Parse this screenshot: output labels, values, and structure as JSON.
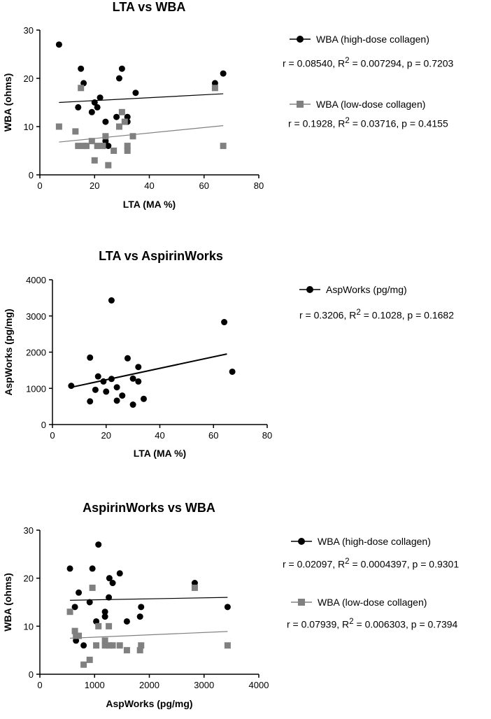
{
  "chart_data": [
    {
      "type": "scatter",
      "title": "LTA vs WBA",
      "xlabel": "LTA (MA %)",
      "ylabel": "WBA (ohms)",
      "xlim": [
        0,
        80
      ],
      "ylim": [
        0,
        30
      ],
      "xticks": [
        "0",
        "20",
        "40",
        "60",
        "80"
      ],
      "yticks": [
        "0",
        "10",
        "20",
        "30"
      ],
      "series": [
        {
          "name": "WBA (high-dose collagen)",
          "marker": "circle",
          "color": "#000000",
          "stats": {
            "r": "0.08540",
            "r2": "0.007294",
            "p": "0.7203"
          },
          "fit": [
            [
              7,
              15.0
            ],
            [
              67,
              16.8
            ]
          ],
          "points": [
            [
              7,
              27
            ],
            [
              14,
              14
            ],
            [
              15,
              22
            ],
            [
              16,
              19
            ],
            [
              19,
              13
            ],
            [
              20,
              15
            ],
            [
              21,
              14
            ],
            [
              22,
              16
            ],
            [
              24,
              7
            ],
            [
              24,
              11
            ],
            [
              25,
              6
            ],
            [
              28,
              12
            ],
            [
              29,
              20
            ],
            [
              30,
              22
            ],
            [
              32,
              11
            ],
            [
              32,
              12
            ],
            [
              35,
              17
            ],
            [
              64,
              19
            ],
            [
              67,
              21
            ]
          ]
        },
        {
          "name": "WBA (low-dose collagen)",
          "marker": "square",
          "color": "#808080",
          "stats": {
            "r": "0.1928",
            "r2": "0.03716",
            "p": "0.4155"
          },
          "fit": [
            [
              7,
              6.8
            ],
            [
              67,
              10.2
            ]
          ],
          "points": [
            [
              7,
              10
            ],
            [
              13,
              9
            ],
            [
              14,
              6
            ],
            [
              15,
              18
            ],
            [
              16,
              6
            ],
            [
              17,
              6
            ],
            [
              19,
              7
            ],
            [
              20,
              3
            ],
            [
              21,
              6
            ],
            [
              23,
              6
            ],
            [
              24,
              8
            ],
            [
              25,
              2
            ],
            [
              27,
              5
            ],
            [
              29,
              10
            ],
            [
              30,
              13
            ],
            [
              31,
              11
            ],
            [
              32,
              5
            ],
            [
              32,
              6
            ],
            [
              34,
              8
            ],
            [
              64,
              18
            ],
            [
              67,
              6
            ]
          ]
        }
      ]
    },
    {
      "type": "scatter",
      "title": "LTA vs AspirinWorks",
      "xlabel": "LTA (MA %)",
      "ylabel": "AspWorks (pg/mg)",
      "xlim": [
        0,
        80
      ],
      "ylim": [
        0,
        4000
      ],
      "xticks": [
        "0",
        "20",
        "40",
        "60",
        "80"
      ],
      "yticks": [
        "0",
        "1000",
        "2000",
        "3000",
        "4000"
      ],
      "series": [
        {
          "name": "AspWorks (pg/mg)",
          "marker": "circle",
          "color": "#000000",
          "stats": {
            "r": "0.3206",
            "r2": "0.1028",
            "p": "0.1682"
          },
          "fit": [
            [
              7,
              1030
            ],
            [
              65,
              1950
            ]
          ],
          "points": [
            [
              7,
              1070
            ],
            [
              14,
              640
            ],
            [
              14,
              1850
            ],
            [
              16,
              960
            ],
            [
              17,
              1330
            ],
            [
              19,
              1190
            ],
            [
              20,
              910
            ],
            [
              22,
              1260
            ],
            [
              22,
              3430
            ],
            [
              24,
              660
            ],
            [
              24,
              1030
            ],
            [
              26,
              800
            ],
            [
              28,
              1830
            ],
            [
              30,
              1270
            ],
            [
              30,
              550
            ],
            [
              32,
              1590
            ],
            [
              32,
              1190
            ],
            [
              34,
              710
            ],
            [
              64,
              2830
            ],
            [
              67,
              1460
            ]
          ]
        }
      ]
    },
    {
      "type": "scatter",
      "title": "AspirinWorks vs WBA",
      "xlabel": "AspWorks (pg/mg)",
      "ylabel": "WBA (ohms)",
      "xlim": [
        0,
        4000
      ],
      "ylim": [
        0,
        30
      ],
      "xticks": [
        "0",
        "1000",
        "2000",
        "3000",
        "4000"
      ],
      "yticks": [
        "0",
        "10",
        "20",
        "30"
      ],
      "series": [
        {
          "name": "WBA (high-dose collagen)",
          "marker": "circle",
          "color": "#000000",
          "stats": {
            "r": "0.02097",
            "r2": "0.0004397",
            "p": "0.9301"
          },
          "fit": [
            [
              550,
              15.4
            ],
            [
              3430,
              16.0
            ]
          ],
          "points": [
            [
              550,
              22
            ],
            [
              640,
              14
            ],
            [
              660,
              7
            ],
            [
              710,
              17
            ],
            [
              800,
              6
            ],
            [
              910,
              15
            ],
            [
              960,
              22
            ],
            [
              1030,
              11
            ],
            [
              1070,
              27
            ],
            [
              1190,
              13
            ],
            [
              1190,
              12
            ],
            [
              1260,
              16
            ],
            [
              1270,
              20
            ],
            [
              1330,
              19
            ],
            [
              1460,
              21
            ],
            [
              1590,
              11
            ],
            [
              1830,
              12
            ],
            [
              1850,
              14
            ],
            [
              2830,
              19
            ],
            [
              3430,
              14
            ]
          ]
        },
        {
          "name": "WBA (low-dose collagen)",
          "marker": "square",
          "color": "#808080",
          "stats": {
            "r": "0.07939",
            "r2": "0.006303",
            "p": "0.7394"
          },
          "fit": [
            [
              550,
              7.5
            ],
            [
              3430,
              8.9
            ]
          ],
          "points": [
            [
              550,
              13
            ],
            [
              640,
              9
            ],
            [
              660,
              8
            ],
            [
              710,
              8
            ],
            [
              800,
              2
            ],
            [
              910,
              3
            ],
            [
              960,
              18
            ],
            [
              1030,
              6
            ],
            [
              1070,
              10
            ],
            [
              1190,
              7
            ],
            [
              1190,
              6
            ],
            [
              1260,
              10
            ],
            [
              1270,
              6
            ],
            [
              1330,
              6
            ],
            [
              1460,
              6
            ],
            [
              1590,
              5
            ],
            [
              1830,
              5
            ],
            [
              1850,
              6
            ],
            [
              2830,
              18
            ],
            [
              3430,
              6
            ]
          ]
        }
      ]
    }
  ],
  "stat_format": {
    "r_prefix": "r = ",
    "r2_prefix": ", R",
    "r2_sup": "2",
    "r2_eq": " = ",
    "p_prefix": ", p = "
  }
}
